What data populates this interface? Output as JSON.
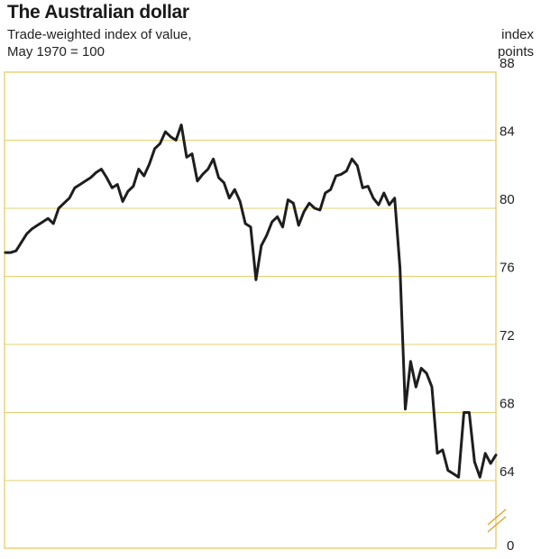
{
  "chart_data": {
    "type": "line",
    "title": "The Australian dollar",
    "subtitle_lines": [
      "Trade-weighted index of value,",
      "May 1970 = 100"
    ],
    "ylabel_lines": [
      "index",
      "points"
    ],
    "xlabel": "",
    "ylim": [
      62,
      88
    ],
    "y_ticks": [
      64,
      68,
      72,
      76,
      80,
      84,
      88
    ],
    "y_zero_label": "0",
    "axis_break": true,
    "gridlines": true,
    "series": [
      {
        "name": "Trade-weighted index",
        "color": "#1e1e1e",
        "values": [
          77.4,
          77.4,
          77.5,
          78.0,
          78.5,
          78.8,
          79.0,
          79.2,
          79.4,
          79.1,
          80.0,
          80.3,
          80.6,
          81.2,
          81.4,
          81.6,
          81.8,
          82.1,
          82.3,
          81.8,
          81.2,
          81.4,
          80.4,
          81.0,
          81.3,
          82.3,
          81.9,
          82.6,
          83.5,
          83.8,
          84.5,
          84.2,
          84.0,
          84.9,
          83.0,
          83.2,
          81.6,
          82.0,
          82.3,
          82.9,
          81.8,
          81.5,
          80.6,
          81.1,
          80.4,
          79.1,
          78.9,
          75.8,
          77.8,
          78.4,
          79.2,
          79.5,
          78.9,
          80.5,
          80.3,
          79.0,
          79.8,
          80.3,
          80.0,
          79.9,
          80.9,
          81.1,
          81.9,
          82.0,
          82.2,
          82.9,
          82.5,
          81.2,
          81.3,
          80.6,
          80.2,
          80.9,
          80.2,
          80.6,
          76.5,
          68.2,
          71.0,
          69.5,
          70.6,
          70.3,
          69.5,
          65.6,
          65.8,
          64.6,
          64.4,
          64.2,
          68.0,
          68.0,
          65.1,
          64.2,
          65.6,
          65.0,
          65.5
        ]
      }
    ]
  }
}
